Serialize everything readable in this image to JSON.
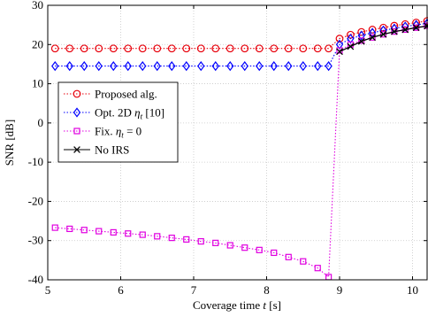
{
  "chart_data": {
    "type": "line",
    "title": "",
    "xlabel_prefix": "Coverage time  ",
    "xlabel_var": "t",
    "xlabel_suffix": " [s]",
    "ylabel": "SNR [dB]",
    "xlim": [
      5,
      10.2
    ],
    "ylim": [
      -40,
      30
    ],
    "xticks": [
      5,
      6,
      7,
      8,
      9,
      10
    ],
    "yticks": [
      -40,
      -30,
      -20,
      -10,
      0,
      10,
      20,
      30
    ],
    "grid": true,
    "legend_position": "center-left",
    "legend": [
      {
        "pre": "Proposed alg.",
        "var": "",
        "sub": "",
        "post": ""
      },
      {
        "pre": "Opt. 2D ",
        "var": "η",
        "sub": "t",
        "post": " [10]"
      },
      {
        "pre": "Fix. ",
        "var": "η",
        "sub": "t",
        "post": " = 0"
      },
      {
        "pre": "No IRS",
        "var": "",
        "sub": "",
        "post": ""
      }
    ],
    "x": [
      5.1,
      5.3,
      5.5,
      5.7,
      5.9,
      6.1,
      6.3,
      6.5,
      6.7,
      6.9,
      7.1,
      7.3,
      7.5,
      7.7,
      7.9,
      8.1,
      8.3,
      8.5,
      8.7,
      8.85,
      9.0,
      9.15,
      9.3,
      9.45,
      9.6,
      9.75,
      9.9,
      10.05,
      10.2
    ],
    "series": [
      {
        "name": "Proposed alg.",
        "color": "#e8000b",
        "marker": "circle",
        "values": [
          19.0,
          19.0,
          19.0,
          19.0,
          19.0,
          19.0,
          19.0,
          19.0,
          19.0,
          19.0,
          19.0,
          19.0,
          19.0,
          19.0,
          19.0,
          19.0,
          19.0,
          19.0,
          19.0,
          19.0,
          21.5,
          22.5,
          23.2,
          23.8,
          24.3,
          24.8,
          25.2,
          25.6,
          26.0
        ]
      },
      {
        "name": "Opt. 2D ηt [10]",
        "color": "#0000ff",
        "marker": "diamond",
        "values": [
          14.5,
          14.5,
          14.5,
          14.5,
          14.5,
          14.5,
          14.5,
          14.5,
          14.5,
          14.5,
          14.5,
          14.5,
          14.5,
          14.5,
          14.5,
          14.5,
          14.5,
          14.5,
          14.5,
          14.5,
          20.0,
          21.5,
          22.3,
          23.0,
          23.6,
          24.1,
          24.6,
          25.0,
          25.4
        ]
      },
      {
        "name": "Fix. ηt = 0",
        "color": "#e000e0",
        "marker": "square",
        "values": [
          -26.7,
          -27.0,
          -27.3,
          -27.6,
          -27.9,
          -28.2,
          -28.5,
          -28.9,
          -29.3,
          -29.7,
          -30.2,
          -30.6,
          -31.2,
          -31.8,
          -32.4,
          -33.1,
          -34.2,
          -35.3,
          -37.0,
          -39.3,
          18.5,
          20.0,
          21.0,
          21.8,
          22.6,
          23.3,
          23.8,
          24.3,
          24.8
        ]
      },
      {
        "name": "No IRS",
        "color": "#000000",
        "marker": "x",
        "values": [
          null,
          null,
          null,
          null,
          null,
          null,
          null,
          null,
          null,
          null,
          null,
          null,
          null,
          null,
          null,
          null,
          null,
          null,
          null,
          null,
          18.2,
          19.5,
          20.8,
          21.8,
          22.6,
          23.3,
          23.8,
          24.3,
          24.7
        ]
      }
    ]
  }
}
